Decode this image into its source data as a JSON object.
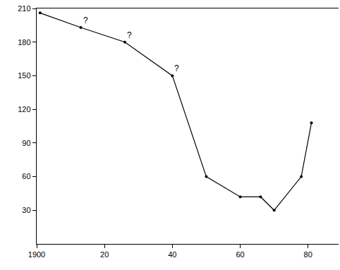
{
  "chart_data": {
    "type": "line",
    "x": [
      1901,
      1913,
      1926,
      1940,
      1950,
      1960,
      1966,
      1970,
      1978,
      1981
    ],
    "values": [
      206,
      193,
      180,
      150,
      60,
      42,
      42,
      30,
      60,
      108
    ],
    "color": "#000000",
    "marker": "circle",
    "line_style": "solid",
    "xlim": [
      1900,
      1989
    ],
    "xticks": [
      1900,
      {
        "value": 1920,
        "label": "20"
      },
      {
        "value": 1940,
        "label": "40"
      },
      {
        "value": 1960,
        "label": "60"
      },
      {
        "value": 1980,
        "label": "80"
      }
    ],
    "ylim": [
      0,
      210
    ],
    "yticks": [
      30,
      60,
      90,
      120,
      150,
      180,
      210
    ],
    "grid": false,
    "annotations": [
      {
        "x": 1913,
        "y": 193,
        "text": "?"
      },
      {
        "x": 1926,
        "y": 180,
        "text": "?"
      },
      {
        "x": 1940,
        "y": 150,
        "text": "?"
      }
    ]
  }
}
